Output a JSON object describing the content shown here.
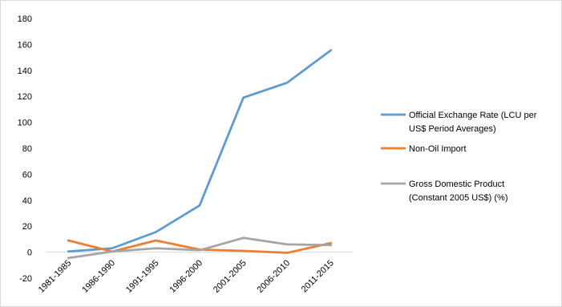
{
  "chart_data": {
    "type": "line",
    "title": "",
    "xlabel": "",
    "ylabel": "",
    "categories": [
      "1981-1985",
      "1986-1990",
      "1991-1995",
      "1996-2000",
      "2001-2005",
      "2006-2010",
      "2011-2015"
    ],
    "ylim": [
      -20,
      180
    ],
    "yticks": [
      -20,
      0,
      20,
      40,
      60,
      80,
      100,
      120,
      140,
      160,
      180
    ],
    "grid": false,
    "legend_position": "right",
    "series": [
      {
        "name": "Official Exchange Rate (LCU per US$ Period Averages)",
        "name_lines": [
          "Official Exchange Rate (LCU per",
          "US$ Period Averages)"
        ],
        "color": "#5b9bd5",
        "values": [
          0.5,
          3,
          15.5,
          36,
          119,
          130.5,
          155.5
        ]
      },
      {
        "name": "Non-Oil Import",
        "name_lines": [
          "Non-Oil Import"
        ],
        "color": "#ed7d31",
        "values": [
          9,
          0.5,
          9,
          2,
          1,
          -0.5,
          7
        ]
      },
      {
        "name": "Gross Domestic Product (Constant 2005 US$) (%)",
        "name_lines": [
          "Gross Domestic Product",
          "(Constant 2005 US$) (%)"
        ],
        "color": "#a5a5a5",
        "values": [
          -4.5,
          0.5,
          3,
          1.5,
          11,
          6,
          5.5
        ]
      }
    ]
  }
}
